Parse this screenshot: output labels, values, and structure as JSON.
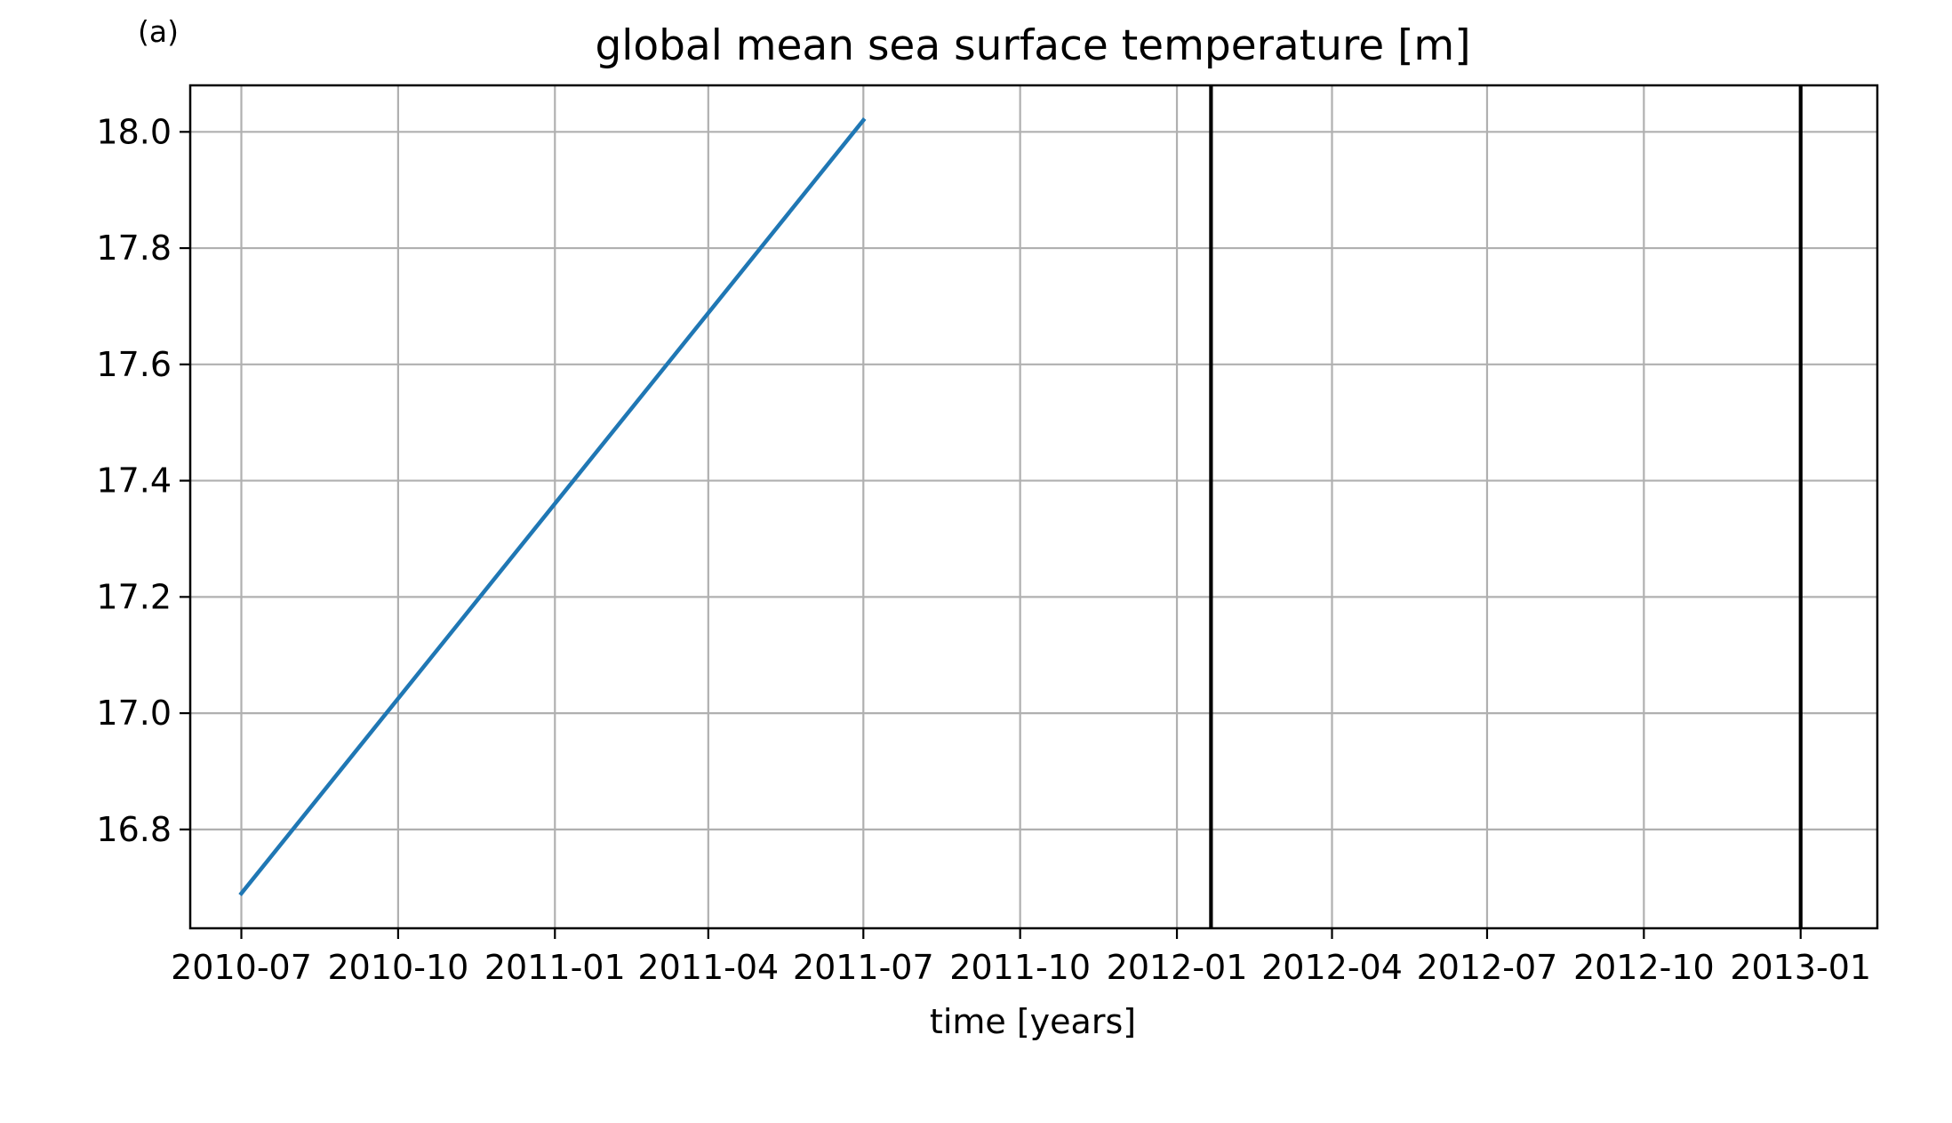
{
  "panel_label": "(a)",
  "chart_data": {
    "type": "line",
    "title": "global mean sea surface temperature [m]",
    "xlabel": "time [years]",
    "ylabel": "",
    "x_axis_type": "date",
    "xlim": [
      "2010-06-01",
      "2013-02-15"
    ],
    "ylim": [
      16.63,
      18.08
    ],
    "x_ticks": [
      {
        "value": "2010-07-01",
        "label": "2010-07"
      },
      {
        "value": "2010-10-01",
        "label": "2010-10"
      },
      {
        "value": "2011-01-01",
        "label": "2011-01"
      },
      {
        "value": "2011-04-01",
        "label": "2011-04"
      },
      {
        "value": "2011-07-01",
        "label": "2011-07"
      },
      {
        "value": "2011-10-01",
        "label": "2011-10"
      },
      {
        "value": "2012-01-01",
        "label": "2012-01"
      },
      {
        "value": "2012-04-01",
        "label": "2012-04"
      },
      {
        "value": "2012-07-01",
        "label": "2012-07"
      },
      {
        "value": "2012-10-01",
        "label": "2012-10"
      },
      {
        "value": "2013-01-01",
        "label": "2013-01"
      }
    ],
    "y_ticks": [
      {
        "value": 16.8,
        "label": "16.8"
      },
      {
        "value": 17.0,
        "label": "17.0"
      },
      {
        "value": 17.2,
        "label": "17.2"
      },
      {
        "value": 17.4,
        "label": "17.4"
      },
      {
        "value": 17.6,
        "label": "17.6"
      },
      {
        "value": 17.8,
        "label": "17.8"
      },
      {
        "value": 18.0,
        "label": "18.0"
      }
    ],
    "grid": true,
    "series": [
      {
        "color": "#1f77b4",
        "points": [
          {
            "x": "2010-07-01",
            "y": 16.69
          },
          {
            "x": "2011-07-01",
            "y": 18.02
          }
        ]
      }
    ],
    "vlines": [
      {
        "x": "2012-01-21",
        "color": "#000000"
      },
      {
        "x": "2013-01-01",
        "color": "#000000"
      }
    ]
  }
}
